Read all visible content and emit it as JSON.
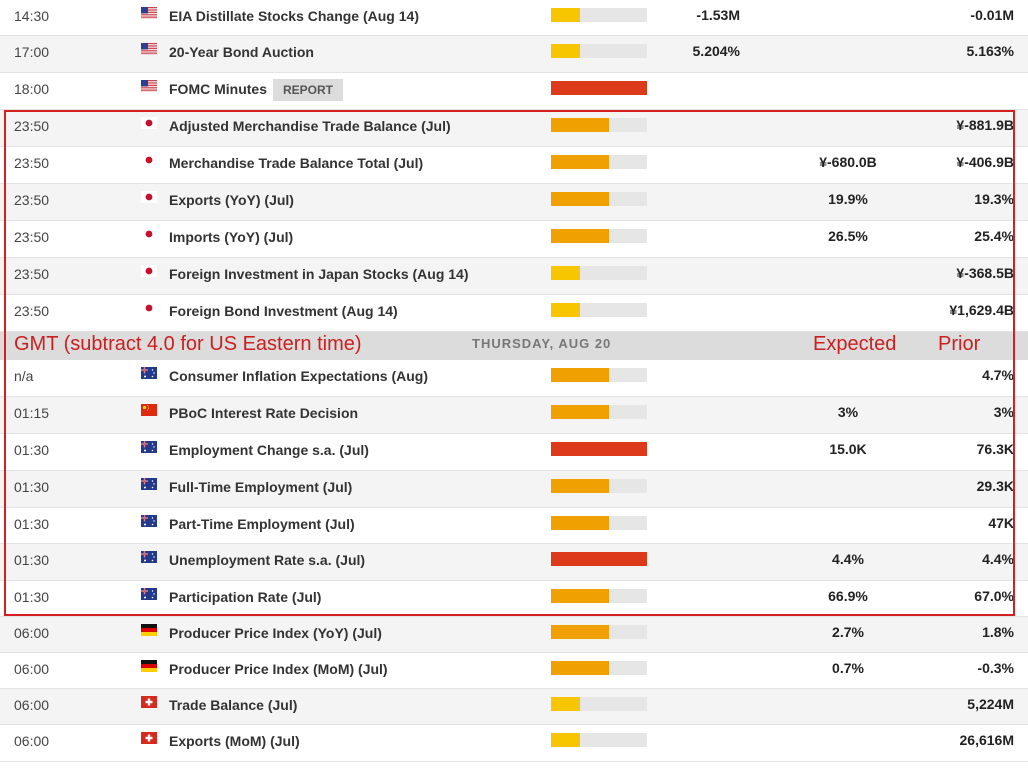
{
  "colors": {
    "impact_low": "#f7c600",
    "impact_medium": "#f0a000",
    "impact_high": "#dd3a1c",
    "annotation_red": "#cc1f1f"
  },
  "date_header": {
    "timezone_note": "GMT (subtract 4.0 for US Eastern time)",
    "date": "THURSDAY, AUG 20",
    "expected_label": "Expected",
    "prior_label": "Prior"
  },
  "events": [
    {
      "time": "14:30",
      "country": "us",
      "event": "EIA Distillate Stocks Change (Aug 14)",
      "report": "",
      "impact": 0.3,
      "impact_level": "low",
      "actual": "-1.53M",
      "forecast": "",
      "previous": "-0.01M"
    },
    {
      "time": "17:00",
      "country": "us",
      "event": "20-Year Bond Auction",
      "report": "",
      "impact": 0.3,
      "impact_level": "low",
      "actual": "5.204%",
      "forecast": "",
      "previous": "5.163%"
    },
    {
      "time": "18:00",
      "country": "us",
      "event": "FOMC Minutes",
      "report": "REPORT",
      "impact": 1.0,
      "impact_level": "high",
      "actual": "",
      "forecast": "",
      "previous": ""
    },
    {
      "time": "23:50",
      "country": "jp",
      "event": "Adjusted Merchandise Trade Balance (Jul)",
      "report": "",
      "impact": 0.6,
      "impact_level": "medium",
      "actual": "",
      "forecast": "",
      "previous": "¥-881.9B"
    },
    {
      "time": "23:50",
      "country": "jp",
      "event": "Merchandise Trade Balance Total (Jul)",
      "report": "",
      "impact": 0.6,
      "impact_level": "medium",
      "actual": "",
      "forecast": "¥-680.0B",
      "previous": "¥-406.9B"
    },
    {
      "time": "23:50",
      "country": "jp",
      "event": "Exports (YoY) (Jul)",
      "report": "",
      "impact": 0.6,
      "impact_level": "medium",
      "actual": "",
      "forecast": "19.9%",
      "previous": "19.3%"
    },
    {
      "time": "23:50",
      "country": "jp",
      "event": "Imports (YoY) (Jul)",
      "report": "",
      "impact": 0.6,
      "impact_level": "medium",
      "actual": "",
      "forecast": "26.5%",
      "previous": "25.4%"
    },
    {
      "time": "23:50",
      "country": "jp",
      "event": "Foreign Investment in Japan Stocks (Aug 14)",
      "report": "",
      "impact": 0.3,
      "impact_level": "low",
      "actual": "",
      "forecast": "",
      "previous": "¥-368.5B"
    },
    {
      "time": "23:50",
      "country": "jp",
      "event": "Foreign Bond Investment (Aug 14)",
      "report": "",
      "impact": 0.3,
      "impact_level": "low",
      "actual": "",
      "forecast": "",
      "previous": "¥1,629.4B"
    },
    {
      "header": true
    },
    {
      "time": "n/a",
      "country": "au",
      "event": "Consumer Inflation Expectations (Aug)",
      "report": "",
      "impact": 0.6,
      "impact_level": "medium",
      "actual": "",
      "forecast": "",
      "previous": "4.7%"
    },
    {
      "time": "01:15",
      "country": "cn",
      "event": "PBoC Interest Rate Decision",
      "report": "",
      "impact": 0.6,
      "impact_level": "medium",
      "actual": "",
      "forecast": "3%",
      "previous": "3%"
    },
    {
      "time": "01:30",
      "country": "au",
      "event": "Employment Change s.a. (Jul)",
      "report": "",
      "impact": 1.0,
      "impact_level": "high",
      "actual": "",
      "forecast": "15.0K",
      "previous": "76.3K"
    },
    {
      "time": "01:30",
      "country": "au",
      "event": "Full-Time Employment (Jul)",
      "report": "",
      "impact": 0.6,
      "impact_level": "medium",
      "actual": "",
      "forecast": "",
      "previous": "29.3K"
    },
    {
      "time": "01:30",
      "country": "au",
      "event": "Part-Time Employment (Jul)",
      "report": "",
      "impact": 0.6,
      "impact_level": "medium",
      "actual": "",
      "forecast": "",
      "previous": "47K"
    },
    {
      "time": "01:30",
      "country": "au",
      "event": "Unemployment Rate s.a. (Jul)",
      "report": "",
      "impact": 1.0,
      "impact_level": "high",
      "actual": "",
      "forecast": "4.4%",
      "previous": "4.4%"
    },
    {
      "time": "01:30",
      "country": "au",
      "event": "Participation Rate (Jul)",
      "report": "",
      "impact": 0.6,
      "impact_level": "medium",
      "actual": "",
      "forecast": "66.9%",
      "previous": "67.0%"
    },
    {
      "time": "06:00",
      "country": "de",
      "event": "Producer Price Index (YoY) (Jul)",
      "report": "",
      "impact": 0.6,
      "impact_level": "medium",
      "actual": "",
      "forecast": "2.7%",
      "previous": "1.8%"
    },
    {
      "time": "06:00",
      "country": "de",
      "event": "Producer Price Index (MoM) (Jul)",
      "report": "",
      "impact": 0.6,
      "impact_level": "medium",
      "actual": "",
      "forecast": "0.7%",
      "previous": "-0.3%"
    },
    {
      "time": "06:00",
      "country": "ch",
      "event": "Trade Balance (Jul)",
      "report": "",
      "impact": 0.3,
      "impact_level": "low",
      "actual": "",
      "forecast": "",
      "previous": "5,224M"
    },
    {
      "time": "06:00",
      "country": "ch",
      "event": "Exports (MoM) (Jul)",
      "report": "",
      "impact": 0.3,
      "impact_level": "low",
      "actual": "",
      "forecast": "",
      "previous": "26,616M"
    }
  ]
}
